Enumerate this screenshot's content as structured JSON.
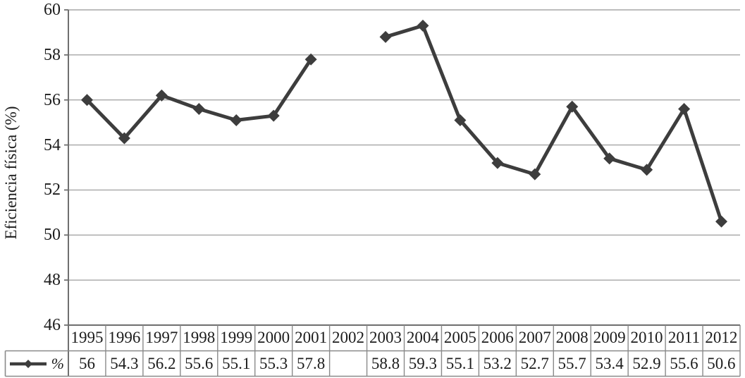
{
  "chart_data": {
    "type": "line",
    "title": "",
    "xlabel": "",
    "ylabel": "Eficiencia física (%)",
    "categories": [
      "1995",
      "1996",
      "1997",
      "1998",
      "1999",
      "2000",
      "2001",
      "2002",
      "2003",
      "2004",
      "2005",
      "2006",
      "2007",
      "2008",
      "2009",
      "2010",
      "2011",
      "2012"
    ],
    "series": [
      {
        "name": "%",
        "values": [
          56,
          54.3,
          56.2,
          55.6,
          55.1,
          55.3,
          57.8,
          null,
          58.8,
          59.3,
          55.1,
          53.2,
          52.7,
          55.7,
          53.4,
          52.9,
          55.6,
          50.6
        ]
      }
    ],
    "ylim": [
      46,
      60
    ],
    "yticks": [
      46,
      48,
      50,
      52,
      54,
      56,
      58,
      60
    ],
    "grid": true,
    "legend_position": "table-left",
    "marker": "diamond",
    "line_color": "#3d3d3d",
    "grid_color": "#a6a6a6",
    "axis_color": "#6f6f6f",
    "table_border_color": "#8a8a8a"
  },
  "table": {
    "legend_label": "%",
    "year_headers": [
      "1995",
      "1996",
      "1997",
      "1998",
      "1999",
      "2000",
      "2001",
      "2002",
      "2003",
      "2004",
      "2005",
      "2006",
      "2007",
      "2008",
      "2009",
      "2010",
      "2011",
      "2012"
    ],
    "display_values": [
      "56",
      "54.3",
      "56.2",
      "55.6",
      "55.1",
      "55.3",
      "57.8",
      "",
      "58.8",
      "59.3",
      "55.1",
      "53.2",
      "52.7",
      "55.7",
      "53.4",
      "52.9",
      "55.6",
      "50.6"
    ]
  }
}
